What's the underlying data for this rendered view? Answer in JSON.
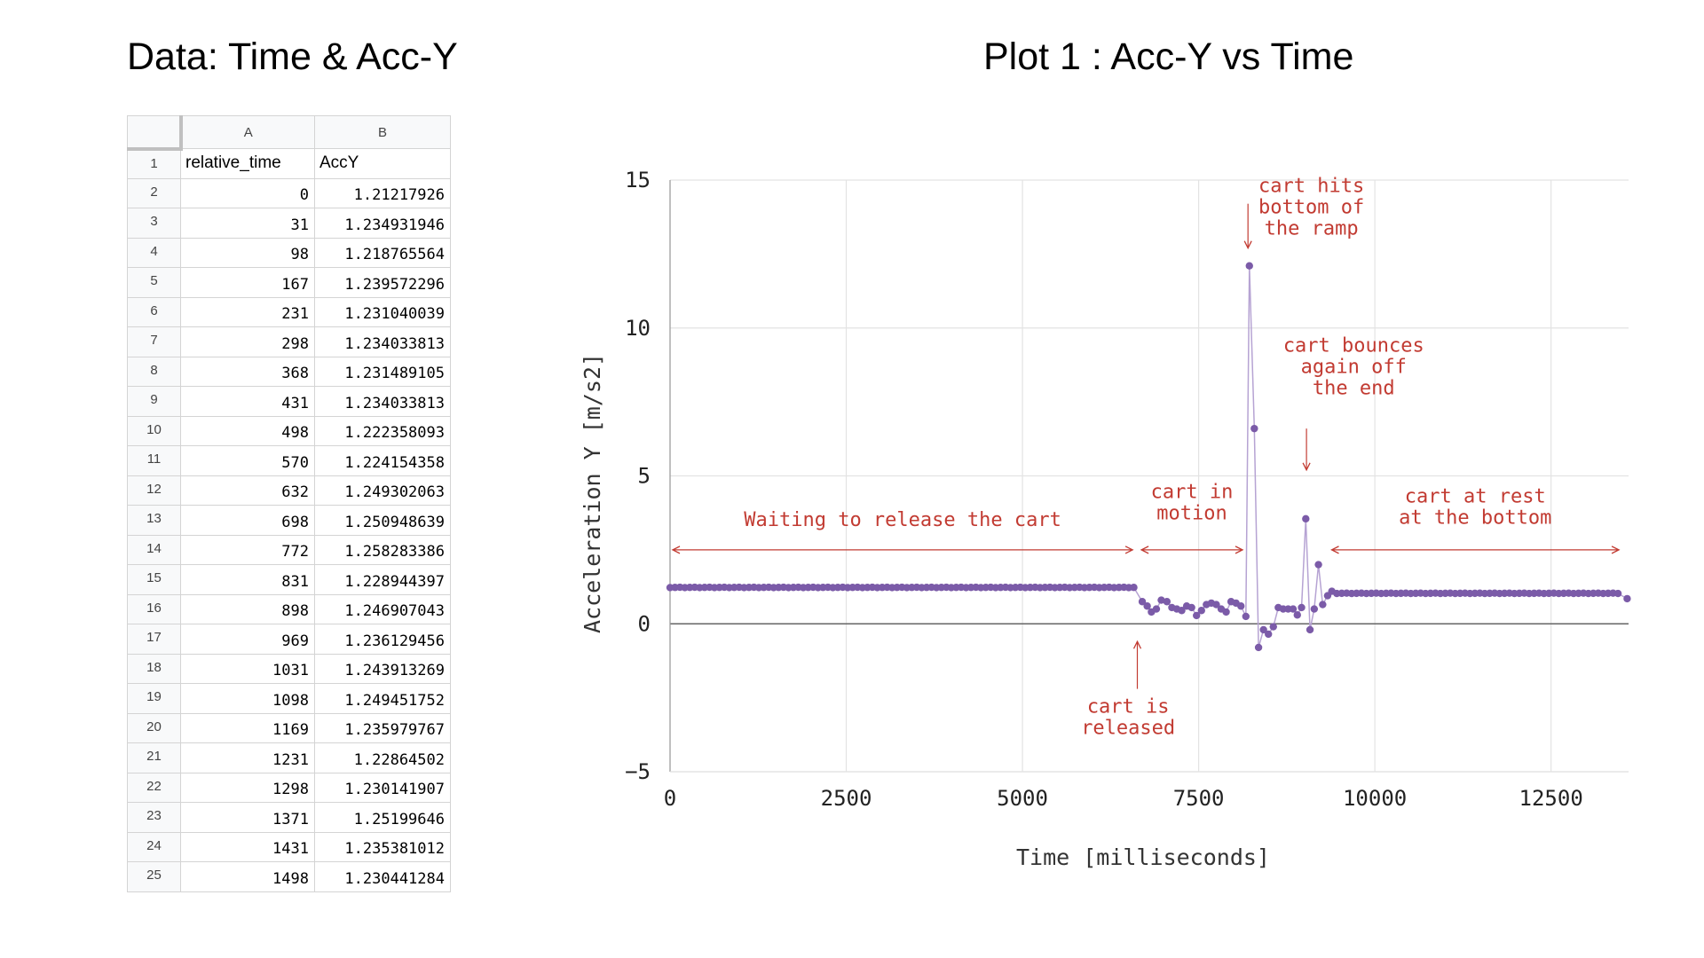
{
  "left_title": "Data: Time & Acc-Y",
  "spreadsheet": {
    "column_letters": [
      "A",
      "B"
    ],
    "headers": [
      "relative_time",
      "AccY"
    ],
    "row_numbers": [
      "1",
      "2",
      "3",
      "4",
      "5",
      "6",
      "7",
      "8",
      "9",
      "10",
      "11",
      "12",
      "13",
      "14",
      "15",
      "16",
      "17",
      "18",
      "19",
      "20",
      "21",
      "22",
      "23",
      "24",
      "25"
    ],
    "rows": [
      [
        "0",
        "1.21217926"
      ],
      [
        "31",
        "1.234931946"
      ],
      [
        "98",
        "1.218765564"
      ],
      [
        "167",
        "1.239572296"
      ],
      [
        "231",
        "1.231040039"
      ],
      [
        "298",
        "1.234033813"
      ],
      [
        "368",
        "1.231489105"
      ],
      [
        "431",
        "1.234033813"
      ],
      [
        "498",
        "1.222358093"
      ],
      [
        "570",
        "1.224154358"
      ],
      [
        "632",
        "1.249302063"
      ],
      [
        "698",
        "1.250948639"
      ],
      [
        "772",
        "1.258283386"
      ],
      [
        "831",
        "1.228944397"
      ],
      [
        "898",
        "1.246907043"
      ],
      [
        "969",
        "1.236129456"
      ],
      [
        "1031",
        "1.243913269"
      ],
      [
        "1098",
        "1.249451752"
      ],
      [
        "1169",
        "1.235979767"
      ],
      [
        "1231",
        "1.22864502"
      ],
      [
        "1298",
        "1.230141907"
      ],
      [
        "1371",
        "1.25199646"
      ],
      [
        "1431",
        "1.235381012"
      ],
      [
        "1498",
        "1.230441284"
      ]
    ]
  },
  "chart_data": {
    "type": "line",
    "title": "Plot 1 : Acc-Y vs Time",
    "xlabel": "Time [milliseconds]",
    "ylabel": "Acceleration Y [m/s2]",
    "xlim": [
      0,
      13600
    ],
    "ylim": [
      -5,
      15
    ],
    "xticks": [
      0,
      2500,
      5000,
      7500,
      10000,
      12500
    ],
    "yticks": [
      -5,
      0,
      5,
      10,
      15
    ],
    "ytick_labels": [
      "−5",
      "0",
      "5",
      "10",
      "15"
    ],
    "grid": true,
    "line_color": "#7b5ba8",
    "annotation_color": "#c23b32",
    "series": [
      {
        "flat_segments": [
          {
            "x_start": 0,
            "x_end": 6600,
            "y": 1.23
          },
          {
            "x_start": 9400,
            "x_end": 13500,
            "y": 1.03
          }
        ],
        "points": [
          [
            6700,
            0.75
          ],
          [
            6770,
            0.6
          ],
          [
            6830,
            0.4
          ],
          [
            6900,
            0.5
          ],
          [
            6970,
            0.8
          ],
          [
            7050,
            0.75
          ],
          [
            7120,
            0.55
          ],
          [
            7190,
            0.5
          ],
          [
            7260,
            0.45
          ],
          [
            7330,
            0.6
          ],
          [
            7400,
            0.55
          ],
          [
            7470,
            0.28
          ],
          [
            7540,
            0.45
          ],
          [
            7610,
            0.65
          ],
          [
            7680,
            0.7
          ],
          [
            7750,
            0.65
          ],
          [
            7820,
            0.5
          ],
          [
            7890,
            0.4
          ],
          [
            7960,
            0.75
          ],
          [
            8030,
            0.7
          ],
          [
            8100,
            0.6
          ],
          [
            8170,
            0.25
          ],
          [
            8220,
            12.1
          ],
          [
            8290,
            6.6
          ],
          [
            8350,
            -0.8
          ],
          [
            8420,
            -0.2
          ],
          [
            8490,
            -0.35
          ],
          [
            8560,
            -0.1
          ],
          [
            8630,
            0.55
          ],
          [
            8700,
            0.5
          ],
          [
            8770,
            0.5
          ],
          [
            8840,
            0.5
          ],
          [
            8900,
            0.3
          ],
          [
            8960,
            0.55
          ],
          [
            9020,
            3.55
          ],
          [
            9080,
            -0.2
          ],
          [
            9140,
            0.5
          ],
          [
            9200,
            2.0
          ],
          [
            9260,
            0.65
          ],
          [
            9330,
            0.95
          ],
          [
            9390,
            1.1
          ],
          [
            13580,
            0.85
          ]
        ]
      }
    ],
    "annotations": [
      {
        "lines": [
          "Waiting to release the cart"
        ],
        "arrow": "double",
        "x_start": 0,
        "x_end": 6600,
        "y_arrow": 2.5,
        "y_text": 3.3
      },
      {
        "lines": [
          "cart in",
          "motion"
        ],
        "arrow": "double",
        "x_start": 6650,
        "x_end": 8160,
        "y_arrow": 2.5,
        "y_text": 4.25
      },
      {
        "lines": [
          "cart at rest",
          "at the bottom"
        ],
        "arrow": "double",
        "x_start": 9350,
        "x_end": 13500,
        "y_arrow": 2.5,
        "y_text": 4.1
      },
      {
        "lines": [
          "cart hits",
          "bottom of",
          "the ramp"
        ],
        "arrow": "down",
        "x_arrow": 8200,
        "y_from": 14.2,
        "y_to": 12.7,
        "x_text": 9100,
        "y_text": 14.6
      },
      {
        "lines": [
          "cart bounces",
          "again off",
          "the end"
        ],
        "arrow": "down",
        "x_arrow": 9030,
        "y_from": 6.6,
        "y_to": 5.2,
        "x_text": 9700,
        "y_text": 9.2
      },
      {
        "lines": [
          "cart is",
          "released"
        ],
        "arrow": "up",
        "x_arrow": 6630,
        "y_from": -2.2,
        "y_to": -0.6,
        "x_text": 6500,
        "y_text": -3.0
      }
    ]
  }
}
